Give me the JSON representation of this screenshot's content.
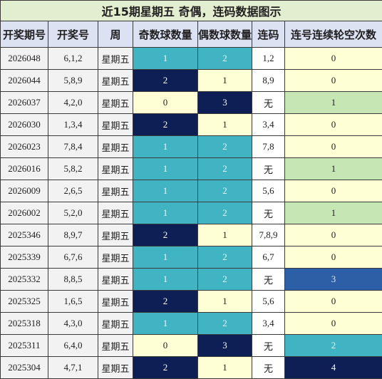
{
  "title": "近15期星期五 奇偶，连码数据图示",
  "headers": [
    "开奖期号",
    "开奖号",
    "周",
    "奇数球数量",
    "偶数球数量",
    "连码",
    "连号连续轮空次数"
  ],
  "colors": {
    "plain_bg": "#f2f2f2",
    "pale_yellow": "#ffffd6",
    "teal": "#40b4c2",
    "navy": "#0e1f55",
    "light_green": "#c6e6b4",
    "blue": "#2c5fa6"
  },
  "rows": [
    {
      "issue": "2026048",
      "numbers": "6,1,2",
      "weekday": "星期五",
      "odd": "1",
      "even": "2",
      "consecutive": "1,2",
      "gap": "0"
    },
    {
      "issue": "2026044",
      "numbers": "5,8,9",
      "weekday": "星期五",
      "odd": "2",
      "even": "1",
      "consecutive": "8,9",
      "gap": "0"
    },
    {
      "issue": "2026037",
      "numbers": "4,2,0",
      "weekday": "星期五",
      "odd": "0",
      "even": "3",
      "consecutive": "无",
      "gap": "1"
    },
    {
      "issue": "2026030",
      "numbers": "1,3,4",
      "weekday": "星期五",
      "odd": "2",
      "even": "1",
      "consecutive": "3,4",
      "gap": "0"
    },
    {
      "issue": "2026023",
      "numbers": "7,8,4",
      "weekday": "星期五",
      "odd": "1",
      "even": "2",
      "consecutive": "7,8",
      "gap": "0"
    },
    {
      "issue": "2026016",
      "numbers": "5,8,2",
      "weekday": "星期五",
      "odd": "1",
      "even": "2",
      "consecutive": "无",
      "gap": "1"
    },
    {
      "issue": "2026009",
      "numbers": "2,6,5",
      "weekday": "星期五",
      "odd": "1",
      "even": "2",
      "consecutive": "5,6",
      "gap": "0"
    },
    {
      "issue": "2026002",
      "numbers": "5,2,0",
      "weekday": "星期五",
      "odd": "1",
      "even": "2",
      "consecutive": "无",
      "gap": "1"
    },
    {
      "issue": "2025346",
      "numbers": "8,9,7",
      "weekday": "星期五",
      "odd": "2",
      "even": "1",
      "consecutive": "7,8,9",
      "gap": "0"
    },
    {
      "issue": "2025339",
      "numbers": "6,7,6",
      "weekday": "星期五",
      "odd": "1",
      "even": "2",
      "consecutive": "6,7",
      "gap": "0"
    },
    {
      "issue": "2025332",
      "numbers": "8,8,5",
      "weekday": "星期五",
      "odd": "1",
      "even": "2",
      "consecutive": "无",
      "gap": "3"
    },
    {
      "issue": "2025325",
      "numbers": "1,6,5",
      "weekday": "星期五",
      "odd": "2",
      "even": "1",
      "consecutive": "5,6",
      "gap": "0"
    },
    {
      "issue": "2025318",
      "numbers": "4,3,0",
      "weekday": "星期五",
      "odd": "1",
      "even": "2",
      "consecutive": "3,4",
      "gap": "0"
    },
    {
      "issue": "2025311",
      "numbers": "6,4,0",
      "weekday": "星期五",
      "odd": "0",
      "even": "3",
      "consecutive": "无",
      "gap": "2"
    },
    {
      "issue": "2025304",
      "numbers": "4,7,1",
      "weekday": "星期五",
      "odd": "2",
      "even": "1",
      "consecutive": "无",
      "gap": "4"
    }
  ]
}
